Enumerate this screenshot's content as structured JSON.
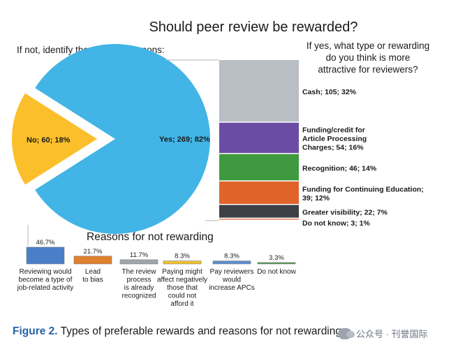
{
  "title": "Should peer review be rewarded?",
  "pie": {
    "subtitle": "If not, identify the possible reasons:",
    "slices": [
      {
        "label": "Yes; 269; 82%",
        "value": 82,
        "color": "#42b4e6"
      },
      {
        "label": "No; 60; 18%",
        "value": 18,
        "color": "#fbbf2c"
      }
    ]
  },
  "stack": {
    "question_lines": [
      "If yes, what type or rewarding",
      "do you think is more",
      "attractive for reviewers?"
    ],
    "segments": [
      {
        "label_lines": [
          "Cash; 105; 32%"
        ],
        "value": 32,
        "color": "#b9bec4"
      },
      {
        "label_lines": [
          "Funding/credit for",
          "Article Processing",
          "Charges; 54; 16%"
        ],
        "value": 16,
        "color": "#6a4ca4"
      },
      {
        "label_lines": [
          "Recognition; 46; 14%"
        ],
        "value": 14,
        "color": "#3f9a3f"
      },
      {
        "label_lines": [
          "Funding for Continuing Education;",
          "39; 12%"
        ],
        "value": 12,
        "color": "#e0632a"
      },
      {
        "label_lines": [
          "Greater visibility; 22; 7%"
        ],
        "value": 7,
        "color": "#3c3f44"
      },
      {
        "label_lines": [
          "Do not know; 3; 1%"
        ],
        "value": 1,
        "color": "#e87a5a"
      }
    ]
  },
  "reasons": {
    "title": "Reasons for not rewarding",
    "items": [
      {
        "pct": "46.7%",
        "value": 46.7,
        "color": "#4a7fc8",
        "label_lines": [
          "Reviewing would",
          "become a type of",
          "job-related activity"
        ]
      },
      {
        "pct": "21.7%",
        "value": 21.7,
        "color": "#e0812f",
        "label_lines": [
          "Lead",
          "to bias"
        ]
      },
      {
        "pct": "11.7%",
        "value": 11.7,
        "color": "#9fa5ab",
        "label_lines": [
          "The review",
          "process",
          "is already",
          "recognized"
        ]
      },
      {
        "pct": "8.3%",
        "value": 8.3,
        "color": "#f2c12e",
        "label_lines": [
          "Paying might",
          "affect negatively",
          "those that",
          "could not",
          "afford it"
        ]
      },
      {
        "pct": "8.3%",
        "value": 8.3,
        "color": "#5b8fd0",
        "label_lines": [
          "Pay reviewers",
          "would",
          "increase APCs"
        ]
      },
      {
        "pct": "3.3%",
        "value": 3.3,
        "color": "#4f9a4f",
        "label_lines": [
          "Do not know"
        ]
      }
    ]
  },
  "caption": {
    "figure_label": "Figure 2.",
    "text": " Types of preferable rewards and reasons for not rewarding"
  },
  "watermark": "公众号 · 刊誉国际",
  "chart_data": [
    {
      "type": "pie",
      "title": "Should peer review be rewarded?",
      "categories": [
        "Yes",
        "No"
      ],
      "counts": [
        269,
        60
      ],
      "values": [
        82,
        18
      ]
    },
    {
      "type": "bar",
      "title": "If yes, what type or rewarding do you think is more attractive for reviewers?",
      "categories": [
        "Cash",
        "Funding/credit for Article Processing Charges",
        "Recognition",
        "Funding for Continuing Education",
        "Greater visibility",
        "Do not know"
      ],
      "counts": [
        105,
        54,
        46,
        39,
        22,
        3
      ],
      "values": [
        32,
        16,
        14,
        12,
        7,
        1
      ]
    },
    {
      "type": "bar",
      "title": "Reasons for not rewarding",
      "categories": [
        "Reviewing would become a type of job-related activity",
        "Lead to bias",
        "The review process is already recognized",
        "Paying might affect negatively those that could not afford it",
        "Pay reviewers would increase APCs",
        "Do not know"
      ],
      "values": [
        46.7,
        21.7,
        11.7,
        8.3,
        8.3,
        3.3
      ]
    }
  ]
}
